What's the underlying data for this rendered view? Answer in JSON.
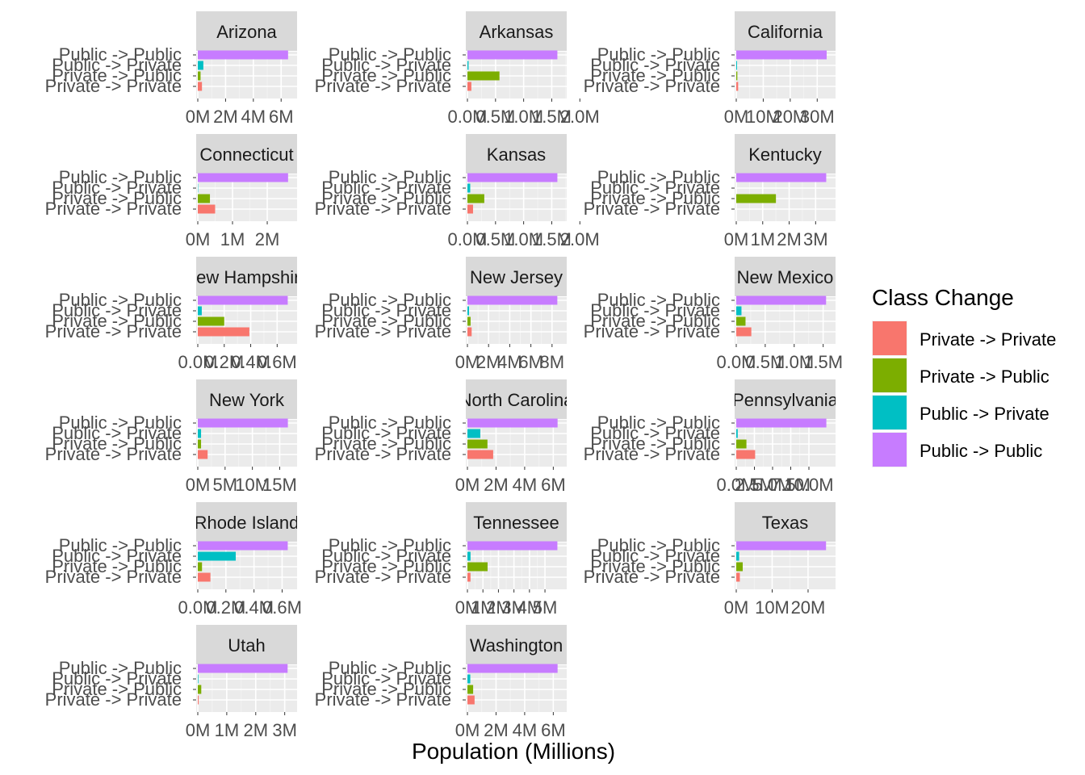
{
  "chart_data": {
    "type": "bar",
    "orientation": "horizontal",
    "facet": "wrap",
    "xlabel": "Population (Millions)",
    "categories": [
      "Private -> Private",
      "Private -> Public",
      "Public -> Private",
      "Public -> Public"
    ],
    "legend": {
      "title": "Class Change",
      "position": "right",
      "entries": [
        "Private -> Private",
        "Private -> Public",
        "Public -> Private",
        "Public -> Public"
      ]
    },
    "colors": {
      "Private -> Private": "#F8766D",
      "Private -> Public": "#7CAE00",
      "Public -> Private": "#00BFC4",
      "Public -> Public": "#C77CFF"
    },
    "grid": true,
    "panels": [
      {
        "state": "Arizona",
        "values": [
          0.3,
          0.2,
          0.4,
          6.5
        ],
        "xlim": [
          0,
          6.8
        ],
        "ticks": [
          0,
          2,
          4,
          6
        ],
        "tick_labels": [
          "0M",
          "2M",
          "4M",
          "6M"
        ]
      },
      {
        "state": "Arkansas",
        "values": [
          0.07,
          0.57,
          0.02,
          1.6
        ],
        "xlim": [
          0,
          1.68
        ],
        "ticks": [
          0,
          0.5,
          1.0,
          1.5,
          2.0
        ],
        "tick_labels": [
          "0.0M",
          "0.5M",
          "1.0M",
          "1.5M",
          "2.0M"
        ]
      },
      {
        "state": "California",
        "values": [
          0.7,
          0.4,
          0.3,
          33.5
        ],
        "xlim": [
          0,
          35
        ],
        "ticks": [
          0,
          10,
          20,
          30
        ],
        "tick_labels": [
          "0M",
          "10M",
          "20M",
          "30M"
        ]
      },
      {
        "state": "Connecticut",
        "values": [
          0.5,
          0.35,
          0.01,
          2.6
        ],
        "xlim": [
          0,
          2.72
        ],
        "ticks": [
          0,
          1,
          2
        ],
        "tick_labels": [
          "0M",
          "1M",
          "2M"
        ]
      },
      {
        "state": "Kansas",
        "values": [
          0.1,
          0.3,
          0.05,
          1.6
        ],
        "xlim": [
          0,
          1.68
        ],
        "ticks": [
          0,
          0.5,
          1.0,
          1.5,
          2.0
        ],
        "tick_labels": [
          "0.0M",
          "0.5M",
          "1.0M",
          "1.5M",
          "2.0M"
        ]
      },
      {
        "state": "Kentucky",
        "values": [
          0,
          1.5,
          0,
          3.4
        ],
        "xlim": [
          0,
          3.57
        ],
        "ticks": [
          0,
          1,
          2,
          3
        ],
        "tick_labels": [
          "0M",
          "1M",
          "2M",
          "3M"
        ]
      },
      {
        "state": "New Hampshire",
        "values": [
          0.39,
          0.2,
          0.03,
          0.68
        ],
        "xlim": [
          0,
          0.714
        ],
        "ticks": [
          0,
          0.2,
          0.4,
          0.6
        ],
        "tick_labels": [
          "0.0M",
          "0.2M",
          "0.4M",
          "0.6M"
        ]
      },
      {
        "state": "New Jersey",
        "values": [
          0.4,
          0.3,
          0.15,
          8.5
        ],
        "xlim": [
          0,
          8.93
        ],
        "ticks": [
          0,
          2,
          4,
          6,
          8
        ],
        "tick_labels": [
          "0M",
          "2M",
          "4M",
          "6M",
          "8M"
        ]
      },
      {
        "state": "New Mexico",
        "values": [
          0.26,
          0.16,
          0.09,
          1.55
        ],
        "xlim": [
          0,
          1.63
        ],
        "ticks": [
          0,
          0.5,
          1.0,
          1.5
        ],
        "tick_labels": [
          "0.0M",
          "0.5M",
          "1.0M",
          "1.5M"
        ]
      },
      {
        "state": "New York",
        "values": [
          1.8,
          0.6,
          0.6,
          16.5
        ],
        "xlim": [
          0,
          17.3
        ],
        "ticks": [
          0,
          5,
          10,
          15
        ],
        "tick_labels": [
          "0M",
          "5M",
          "10M",
          "15M"
        ]
      },
      {
        "state": "North Carolina",
        "values": [
          1.8,
          1.4,
          0.9,
          6.3
        ],
        "xlim": [
          0,
          6.6
        ],
        "ticks": [
          0,
          2,
          4,
          6
        ],
        "tick_labels": [
          "0M",
          "2M",
          "4M",
          "6M"
        ]
      },
      {
        "state": "Pennsylvania",
        "values": [
          2.6,
          1.4,
          0.2,
          12.4
        ],
        "xlim": [
          0,
          13.0
        ],
        "ticks": [
          0,
          2.5,
          5.0,
          7.5,
          10.0
        ],
        "tick_labels": [
          "0.0M",
          "2.5M",
          "5.0M",
          "7.5M",
          "10.0M"
        ]
      },
      {
        "state": "Rhode Island",
        "values": [
          0.09,
          0.03,
          0.27,
          0.64
        ],
        "xlim": [
          0,
          0.672
        ],
        "ticks": [
          0,
          0.2,
          0.4,
          0.6
        ],
        "tick_labels": [
          "0.0M",
          "0.2M",
          "0.4M",
          "0.6M"
        ]
      },
      {
        "state": "Tennessee",
        "values": [
          0.2,
          1.3,
          0.2,
          5.8
        ],
        "xlim": [
          0,
          6.09
        ],
        "ticks": [
          0,
          1,
          2,
          3,
          4,
          5
        ],
        "tick_labels": [
          "0M",
          "1M",
          "2M",
          "3M",
          "4M",
          "5M"
        ]
      },
      {
        "state": "Texas",
        "values": [
          1.0,
          1.8,
          0.8,
          25.0
        ],
        "xlim": [
          0,
          26.3
        ],
        "ticks": [
          0,
          10,
          20
        ],
        "tick_labels": [
          "0M",
          "10M",
          "20M"
        ]
      },
      {
        "state": "Utah",
        "values": [
          0.03,
          0.12,
          0.02,
          3.1
        ],
        "xlim": [
          0,
          3.26
        ],
        "ticks": [
          0,
          1,
          2,
          3
        ],
        "tick_labels": [
          "0M",
          "1M",
          "2M",
          "3M"
        ]
      },
      {
        "state": "Washington",
        "values": [
          0.5,
          0.4,
          0.2,
          6.3
        ],
        "xlim": [
          0,
          6.6
        ],
        "ticks": [
          0,
          2,
          4,
          6
        ],
        "tick_labels": [
          "0M",
          "2M",
          "4M",
          "6M"
        ]
      }
    ]
  }
}
